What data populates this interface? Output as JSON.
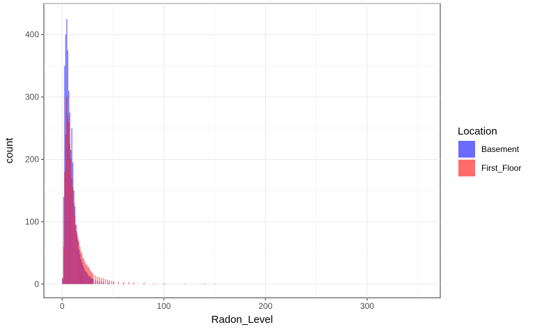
{
  "chart_data": {
    "type": "histogram",
    "xlabel": "Radon_Level",
    "ylabel": "count",
    "xlim": [
      -18,
      372
    ],
    "ylim": [
      -22,
      450
    ],
    "x_ticks": [
      0,
      100,
      200,
      300
    ],
    "y_ticks": [
      0,
      100,
      200,
      300,
      400
    ],
    "grid": true,
    "legend": {
      "title": "Location",
      "position": "right",
      "entries": [
        {
          "label": "Basement",
          "color": "#6b6bff"
        },
        {
          "label": "First_Floor",
          "color": "#ff6b6b"
        }
      ]
    },
    "bin_width": 1,
    "series": [
      {
        "name": "Basement",
        "color": "#0000ff",
        "opacity": 0.5,
        "x": [
          0,
          1,
          2,
          3,
          4,
          5,
          6,
          7,
          8,
          9,
          10,
          11,
          12,
          13,
          14,
          15,
          16,
          17,
          18,
          19,
          20,
          21,
          22,
          23,
          24,
          25,
          26,
          27,
          28,
          29,
          30,
          32,
          34,
          36,
          38,
          40,
          45,
          50,
          60,
          70,
          80,
          100,
          140
        ],
        "counts": [
          8,
          140,
          350,
          400,
          425,
          375,
          310,
          275,
          215,
          250,
          195,
          150,
          125,
          95,
          80,
          70,
          55,
          48,
          40,
          35,
          30,
          26,
          22,
          20,
          18,
          15,
          13,
          12,
          10,
          9,
          8,
          6,
          5,
          4,
          4,
          3,
          2,
          2,
          1,
          1,
          1,
          1,
          1
        ]
      },
      {
        "name": "First_Floor",
        "color": "#ff0000",
        "opacity": 0.5,
        "x": [
          0,
          1,
          2,
          3,
          4,
          5,
          6,
          7,
          8,
          9,
          10,
          11,
          12,
          13,
          14,
          15,
          16,
          17,
          18,
          19,
          20,
          21,
          22,
          23,
          24,
          25,
          26,
          27,
          28,
          29,
          30,
          32,
          34,
          36,
          38,
          40,
          42,
          44,
          46,
          48,
          50,
          55,
          60,
          65,
          70,
          80,
          90,
          100,
          120,
          150
        ],
        "counts": [
          10,
          60,
          180,
          240,
          300,
          270,
          260,
          225,
          200,
          170,
          155,
          130,
          110,
          95,
          85,
          75,
          68,
          60,
          52,
          48,
          42,
          40,
          35,
          32,
          30,
          28,
          26,
          22,
          20,
          18,
          16,
          14,
          12,
          11,
          10,
          9,
          8,
          7,
          6,
          5,
          5,
          4,
          3,
          3,
          2,
          2,
          1,
          1,
          1,
          1
        ]
      }
    ]
  }
}
